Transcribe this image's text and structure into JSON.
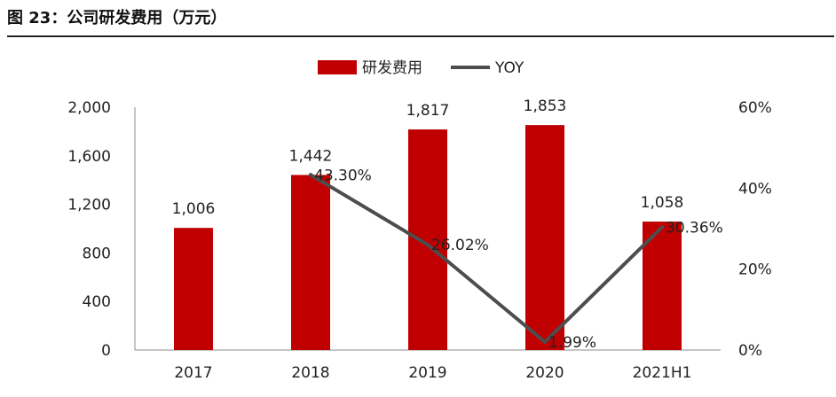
{
  "figure_title": "图 23：公司研发费用（万元）",
  "chart_data": {
    "type": "bar",
    "categories": [
      "2017",
      "2018",
      "2019",
      "2020",
      "2021H1"
    ],
    "series": [
      {
        "name": "研发费用",
        "kind": "bar",
        "axis": "left",
        "color": "#c00000",
        "values": [
          1006,
          1442,
          1817,
          1853,
          1058
        ],
        "labels": [
          "1,006",
          "1,442",
          "1,817",
          "1,853",
          "1,058"
        ]
      },
      {
        "name": "YOY",
        "kind": "line",
        "axis": "right",
        "color": "#4d4d4d",
        "values": [
          null,
          43.3,
          26.02,
          1.99,
          30.36
        ],
        "labels": [
          "",
          "43.30%",
          "26.02%",
          "1.99%",
          "30.36%"
        ]
      }
    ],
    "y_left": {
      "ylim": [
        0,
        2000
      ],
      "ticks": [
        0,
        400,
        800,
        1200,
        1600,
        2000
      ],
      "tick_labels": [
        "0",
        "400",
        "800",
        "1,200",
        "1,600",
        "2,000"
      ]
    },
    "y_right": {
      "ylim": [
        0,
        60
      ],
      "ticks": [
        0,
        20,
        40,
        60
      ],
      "tick_labels": [
        "0%",
        "20%",
        "40%",
        "60%"
      ]
    },
    "legend": {
      "position": "top-center",
      "items": [
        "研发费用",
        "YOY"
      ]
    },
    "grid": false
  }
}
